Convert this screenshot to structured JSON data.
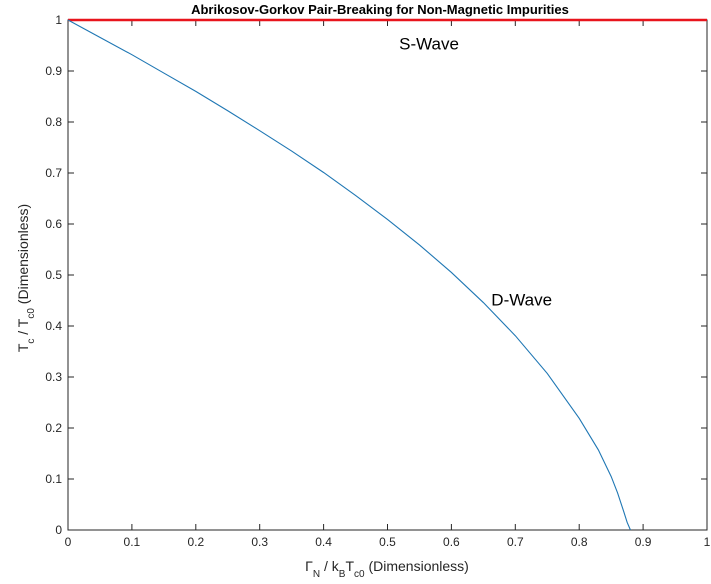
{
  "chart_data": {
    "type": "line",
    "title": "Abrikosov-Gorkov Pair-Breaking for Non-Magnetic Impurities",
    "xlabel": {
      "main": "Γ",
      "sub1": "N",
      "mid": " / k",
      "sub2": "B",
      "mid2": "T",
      "sub3": "c0",
      "tail": " (Dimensionless)"
    },
    "ylabel": {
      "main": "T",
      "sub1": "c",
      "mid": " / T",
      "sub2": "c0",
      "tail": " (Dimensionless)"
    },
    "xlim": [
      0,
      1
    ],
    "ylim": [
      0,
      1
    ],
    "x_ticks": [
      "0",
      "0.1",
      "0.2",
      "0.3",
      "0.4",
      "0.5",
      "0.6",
      "0.7",
      "0.8",
      "0.9",
      "1"
    ],
    "y_ticks": [
      "0",
      "0.1",
      "0.2",
      "0.3",
      "0.4",
      "0.5",
      "0.6",
      "0.7",
      "0.8",
      "0.9",
      "1"
    ],
    "grid": false,
    "series": [
      {
        "name": "S-Wave",
        "color": "#e8141c",
        "x": [
          0,
          1
        ],
        "y": [
          1,
          1
        ]
      },
      {
        "name": "D-Wave",
        "color": "#1f77b4",
        "x": [
          0,
          0.05,
          0.1,
          0.15,
          0.2,
          0.25,
          0.3,
          0.35,
          0.4,
          0.45,
          0.5,
          0.55,
          0.6,
          0.65,
          0.7,
          0.75,
          0.8,
          0.83,
          0.85,
          0.86,
          0.87,
          0.875,
          0.8802
        ],
        "y": [
          1,
          0.966,
          0.932,
          0.896,
          0.86,
          0.822,
          0.783,
          0.743,
          0.701,
          0.656,
          0.609,
          0.559,
          0.505,
          0.446,
          0.381,
          0.307,
          0.219,
          0.157,
          0.105,
          0.073,
          0.035,
          0.015,
          0
        ]
      }
    ],
    "annotations": [
      {
        "text": "S-Wave",
        "x": 0.565,
        "y": 0.942
      },
      {
        "text": "D-Wave",
        "x": 0.71,
        "y": 0.44
      }
    ]
  }
}
